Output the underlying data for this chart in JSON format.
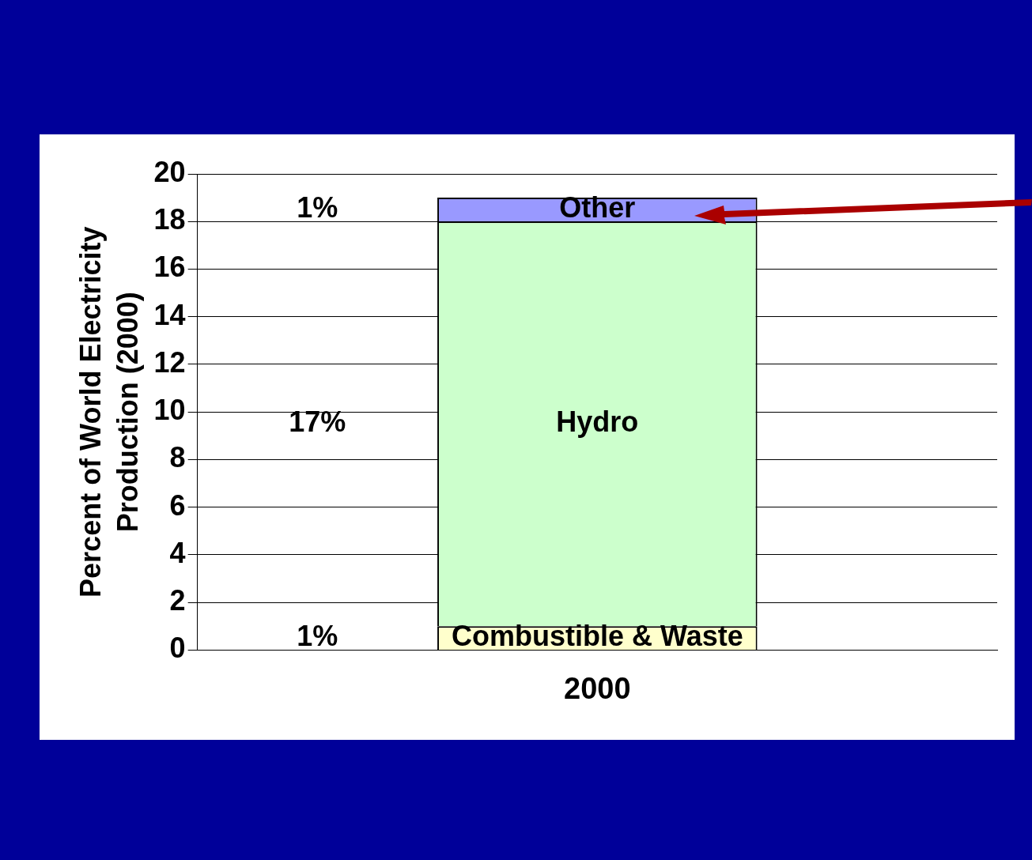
{
  "chart_data": {
    "type": "bar",
    "stacked": true,
    "ylabel": "Percent of World Electricity Production (2000)",
    "categories": [
      "2000"
    ],
    "ylim": [
      0,
      20
    ],
    "yticks": [
      0,
      2,
      4,
      6,
      8,
      10,
      12,
      14,
      16,
      18,
      20
    ],
    "grid": "y",
    "legend": false,
    "series": [
      {
        "name": "Combustible & Waste",
        "color": "#ffffcc",
        "values": [
          1
        ]
      },
      {
        "name": "Hydro",
        "color": "#ccffcc",
        "values": [
          17
        ]
      },
      {
        "name": "Other",
        "color": "#9999ff",
        "values": [
          1
        ]
      }
    ],
    "annotations": [
      "1%",
      "17%",
      "1%"
    ]
  }
}
